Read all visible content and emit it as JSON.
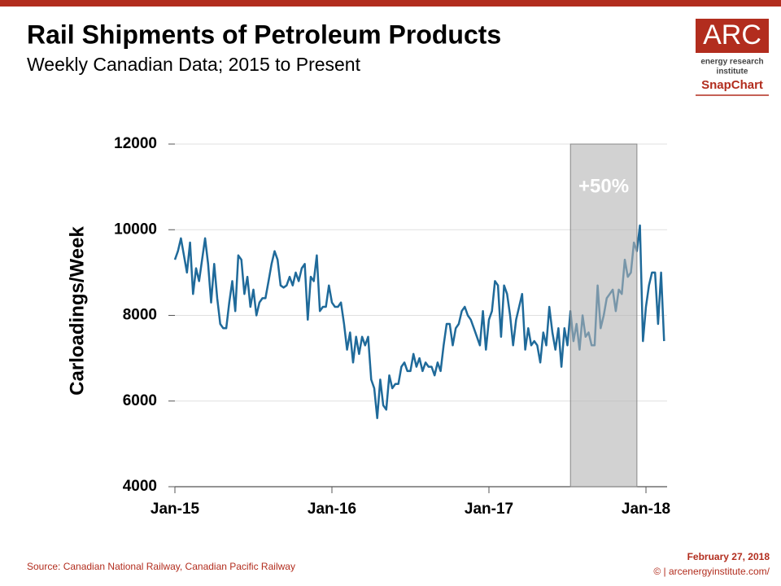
{
  "chart_data": {
    "type": "line",
    "title": "Rail Shipments of Petroleum Products",
    "subtitle": "Weekly Canadian Data; 2015 to Present",
    "y_label": "Carloadings/Week",
    "x": [
      0,
      1,
      2,
      3,
      4,
      5,
      6,
      7,
      8,
      9,
      10,
      11,
      12,
      13,
      14,
      15,
      16,
      17,
      18,
      19,
      20,
      21,
      22,
      23,
      24,
      25,
      26,
      27,
      28,
      29,
      30,
      31,
      32,
      33,
      34,
      35,
      36,
      37,
      38,
      39,
      40,
      41,
      42,
      43,
      44,
      45,
      46,
      47,
      48,
      49,
      50,
      51,
      52,
      53,
      54,
      55,
      56,
      57,
      58,
      59,
      60,
      61,
      62,
      63,
      64,
      65,
      66,
      67,
      68,
      69,
      70,
      71,
      72,
      73,
      74,
      75,
      76,
      77,
      78,
      79,
      80,
      81,
      82,
      83,
      84,
      85,
      86,
      87,
      88,
      89,
      90,
      91,
      92,
      93,
      94,
      95,
      96,
      97,
      98,
      99,
      100,
      101,
      102,
      103,
      104,
      105,
      106,
      107,
      108,
      109,
      110,
      111,
      112,
      113,
      114,
      115,
      116,
      117,
      118,
      119,
      120,
      121,
      122,
      123,
      124,
      125,
      126,
      127,
      128,
      129,
      130,
      131,
      132,
      133,
      134,
      135,
      136,
      137,
      138,
      139,
      140,
      141,
      142,
      143,
      144,
      145,
      146,
      147,
      148,
      149,
      150,
      151,
      152,
      153,
      154,
      155,
      156,
      157,
      158,
      159,
      160,
      161,
      162
    ],
    "series": [
      {
        "name": "Carloadings",
        "color": "#1f6a9a",
        "values": [
          9300,
          9500,
          9800,
          9400,
          9000,
          9700,
          8500,
          9100,
          8800,
          9300,
          9800,
          9200,
          8300,
          9200,
          8400,
          7800,
          7700,
          7700,
          8300,
          8800,
          8100,
          9400,
          9300,
          8500,
          8900,
          8200,
          8600,
          8000,
          8300,
          8400,
          8400,
          8800,
          9200,
          9500,
          9300,
          8700,
          8650,
          8700,
          8900,
          8700,
          9000,
          8800,
          9100,
          9200,
          7900,
          8900,
          8800,
          9400,
          8100,
          8200,
          8200,
          8700,
          8300,
          8200,
          8200,
          8300,
          7800,
          7200,
          7600,
          6900,
          7500,
          7100,
          7500,
          7300,
          7500,
          6500,
          6300,
          5600,
          6500,
          5900,
          5800,
          6600,
          6300,
          6400,
          6400,
          6800,
          6900,
          6700,
          6700,
          7100,
          6800,
          7000,
          6700,
          6900,
          6800,
          6800,
          6600,
          6900,
          6700,
          7300,
          7800,
          7800,
          7300,
          7700,
          7800,
          8100,
          8200,
          8000,
          7900,
          7700,
          7500,
          7300,
          8100,
          7200,
          7900,
          8100,
          8800,
          8700,
          7500,
          8700,
          8500,
          8000,
          7300,
          7900,
          8200,
          8500,
          7200,
          7700,
          7300,
          7400,
          7300,
          6900,
          7600,
          7300,
          8200,
          7600,
          7200,
          7700,
          6800,
          7700,
          7300,
          8100,
          7400,
          7800,
          7200,
          8000,
          7500,
          7600,
          7300,
          7300,
          8700,
          7700,
          8000,
          8400,
          8500,
          8600,
          8100,
          8600,
          8500,
          9300,
          8900,
          9000,
          9700,
          9500,
          10100,
          7400,
          8200,
          8700,
          9000,
          9000,
          7800,
          9000,
          7400
        ]
      }
    ],
    "xlim": [
      0,
      163
    ],
    "xticks": [
      {
        "value": 0,
        "label": "Jan-15"
      },
      {
        "value": 52,
        "label": "Jan-16"
      },
      {
        "value": 104,
        "label": "Jan-17"
      },
      {
        "value": 156,
        "label": "Jan-18"
      }
    ],
    "ylim": [
      4000,
      12000
    ],
    "yticks": [
      4000,
      6000,
      8000,
      10000,
      12000
    ],
    "grid": true,
    "shaded_region": {
      "x_start": 131,
      "x_end": 153,
      "label": "+50%"
    },
    "source": "Source: Canadian National Railway, Canadian Pacific Railway",
    "date": "February 27, 2018",
    "website": "© | arcenergyinstitute.com/",
    "logo": {
      "name": "ARC",
      "line1": "energy research",
      "line2": "institute",
      "tag": "SnapChart"
    }
  }
}
